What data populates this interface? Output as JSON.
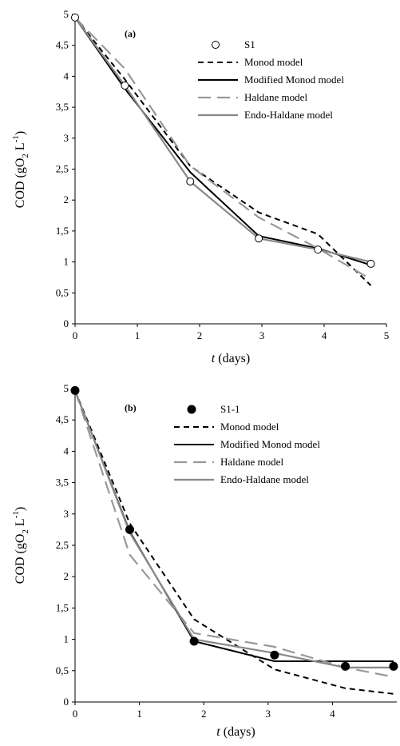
{
  "chart_data": [
    {
      "type": "line",
      "panel_label": "(a)",
      "xlabel": {
        "italic": "t",
        "rest": "(days)"
      },
      "ylabel": {
        "pre": "COD (gO",
        "sub": "2",
        "mid": " L",
        "sup": "-1",
        "post": ")"
      },
      "xlim": [
        0,
        5
      ],
      "ylim": [
        0,
        5
      ],
      "xticks": [
        0,
        1,
        2,
        3,
        4,
        5
      ],
      "yticks": [
        0,
        0.5,
        1,
        1.5,
        2,
        2.5,
        3,
        3.5,
        4,
        4.5,
        5
      ],
      "xtick_labels": [
        "0",
        "1",
        "2",
        "3",
        "4",
        "5"
      ],
      "ytick_labels": [
        "0",
        "0,5",
        "1",
        "1,5",
        "2",
        "2,5",
        "3",
        "3,5",
        "4",
        "4,5",
        "5"
      ],
      "grid": false,
      "legend_position": "top-right",
      "series": [
        {
          "name": "S1",
          "style": "open-marker",
          "color": "#000000",
          "x": [
            0,
            0.8,
            1.85,
            2.95,
            3.9,
            4.75
          ],
          "y": [
            4.95,
            3.85,
            2.3,
            1.38,
            1.2,
            0.97
          ]
        },
        {
          "name": "Monod model",
          "style": "dashed",
          "color": "#000000",
          "x": [
            0,
            0.8,
            1.85,
            2.95,
            3.9,
            4.75
          ],
          "y": [
            4.95,
            3.95,
            2.55,
            1.8,
            1.45,
            0.62
          ]
        },
        {
          "name": "Modified Monod model",
          "style": "solid",
          "color": "#000000",
          "x": [
            0,
            0.8,
            1.85,
            2.95,
            3.9,
            4.75
          ],
          "y": [
            4.95,
            3.8,
            2.45,
            1.42,
            1.22,
            0.95
          ]
        },
        {
          "name": "Haldane model",
          "style": "long-dashed",
          "color": "#999999",
          "x": [
            0,
            0.8,
            1.85,
            2.95,
            3.9,
            4.75
          ],
          "y": [
            4.95,
            4.12,
            2.55,
            1.72,
            1.22,
            0.72
          ]
        },
        {
          "name": "Endo-Haldane model",
          "style": "solid",
          "color": "#888888",
          "x": [
            0,
            0.8,
            1.85,
            2.95,
            3.9,
            4.75
          ],
          "y": [
            4.95,
            3.85,
            2.3,
            1.38,
            1.2,
            1.0
          ]
        }
      ]
    },
    {
      "type": "line",
      "panel_label": "(b)",
      "xlabel": {
        "italic": "t",
        "rest": "(days)"
      },
      "ylabel": {
        "pre": "COD (gO",
        "sub": "2",
        "mid": " L",
        "sup": "-1",
        "post": ")"
      },
      "xlim": [
        0,
        5
      ],
      "ylim": [
        0,
        5
      ],
      "xticks": [
        0,
        1,
        2,
        3,
        4
      ],
      "yticks": [
        0,
        0.5,
        1,
        1.5,
        2,
        2.5,
        3,
        3.5,
        4,
        4.5,
        5
      ],
      "xtick_labels": [
        "0",
        "1",
        "2",
        "3",
        "4"
      ],
      "ytick_labels": [
        "0",
        "0,5",
        "1",
        "1,5",
        "2",
        "2,5",
        "3",
        "3,5",
        "4",
        "4,5",
        "5"
      ],
      "grid": false,
      "legend_position": "top-right",
      "series": [
        {
          "name": "S1-1",
          "style": "filled-marker",
          "color": "#000000",
          "x": [
            0,
            0.85,
            1.85,
            3.1,
            4.2,
            4.95
          ],
          "y": [
            4.97,
            2.75,
            0.97,
            0.75,
            0.57,
            0.57
          ]
        },
        {
          "name": "Monod model",
          "style": "dashed",
          "color": "#000000",
          "x": [
            0,
            0.85,
            1.85,
            3.1,
            4.2,
            4.95
          ],
          "y": [
            4.97,
            2.85,
            1.32,
            0.52,
            0.22,
            0.13
          ]
        },
        {
          "name": "Modified Monod model",
          "style": "solid",
          "color": "#000000",
          "x": [
            0,
            0.85,
            1.85,
            3.1,
            4.2,
            4.95
          ],
          "y": [
            4.97,
            2.72,
            0.97,
            0.65,
            0.65,
            0.65
          ]
        },
        {
          "name": "Haldane model",
          "style": "long-dashed",
          "color": "#999999",
          "x": [
            0,
            0.85,
            1.85,
            3.1,
            4.2,
            4.95
          ],
          "y": [
            4.97,
            2.35,
            1.1,
            0.88,
            0.55,
            0.4
          ]
        },
        {
          "name": "Endo-Haldane model",
          "style": "solid",
          "color": "#888888",
          "x": [
            0,
            0.85,
            1.85,
            3.1,
            4.2,
            4.95
          ],
          "y": [
            4.97,
            2.7,
            1.0,
            0.78,
            0.55,
            0.55
          ]
        }
      ]
    }
  ]
}
